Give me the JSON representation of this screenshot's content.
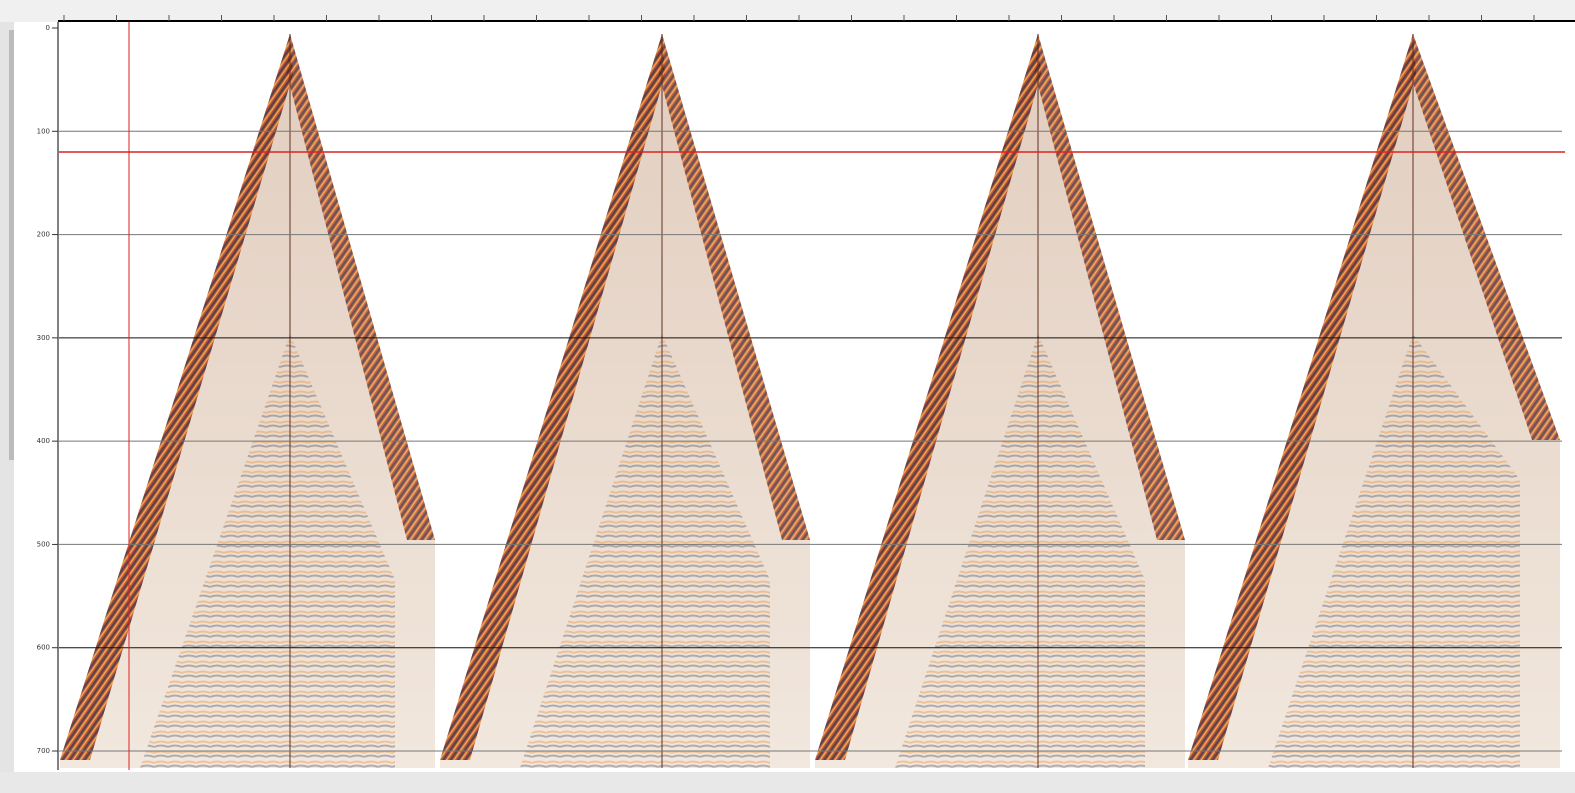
{
  "time_axis": {
    "ticks": [
      0,
      100,
      200,
      300,
      400,
      500,
      600,
      700
    ]
  }
}
